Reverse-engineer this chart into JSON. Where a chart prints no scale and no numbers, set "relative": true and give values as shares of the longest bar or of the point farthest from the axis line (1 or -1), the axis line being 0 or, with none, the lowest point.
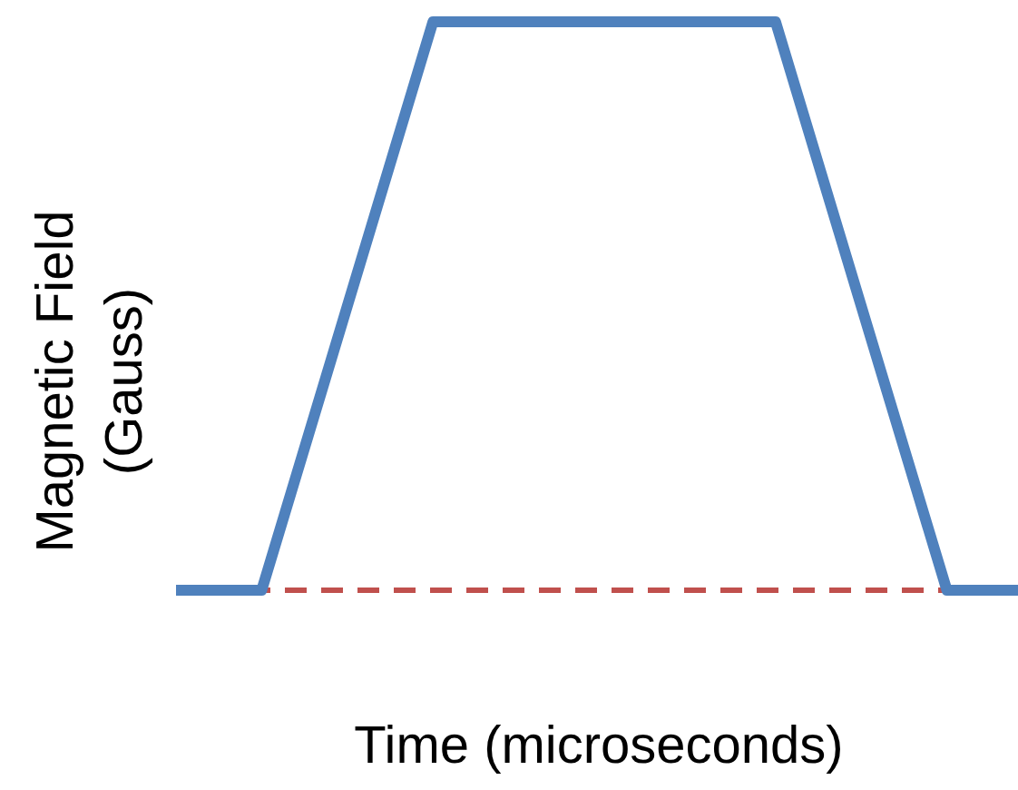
{
  "chart_data": {
    "type": "line",
    "relative": true,
    "xlabel": "Time (microseconds)",
    "ylabel": "Magnetic Field (Gauss)",
    "categories": [
      null,
      null,
      null,
      null,
      null,
      null,
      null,
      null,
      null,
      null,
      null
    ],
    "series": [
      {
        "color": "#4f81bd",
        "values": [
          0,
          0,
          0.5,
          1,
          1,
          1,
          1,
          1,
          0.5,
          0,
          0
        ]
      }
    ],
    "ref_lines": [
      {
        "axis": "y",
        "value": 0,
        "color": "#c0504d",
        "line_style": "dashed"
      }
    ],
    "line_style": "solid"
  }
}
